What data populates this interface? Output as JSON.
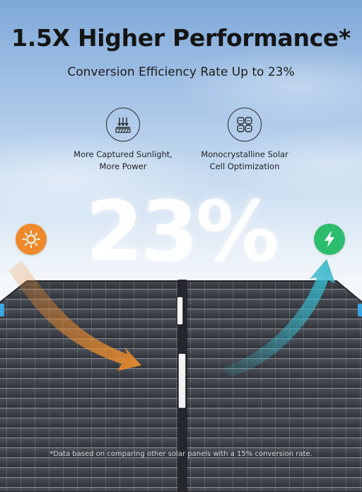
{
  "headline": "1.5X Higher Performance*",
  "subheadline": "Conversion Efficiency Rate Up to 23%",
  "features": [
    {
      "icon": "sunlight-absorption-icon",
      "line1": "More Captured Sunlight,",
      "line2": "More Power"
    },
    {
      "icon": "solar-cell-icon",
      "line1": "Monocrystalline Solar",
      "line2": "Cell Optimization"
    }
  ],
  "big_stat": "23%",
  "badges": {
    "sun": "sun-icon",
    "bolt": "lightning-bolt-icon"
  },
  "colors": {
    "sun_badge": "#ee8a2c",
    "bolt_badge": "#2dbd6e",
    "orange_arrow": "#e98b2e",
    "teal_arrow": "#36b7c9",
    "panel": "#3a3d44"
  },
  "footnote": "*Data based on comparing other solar panels with a 15% conversion rate."
}
